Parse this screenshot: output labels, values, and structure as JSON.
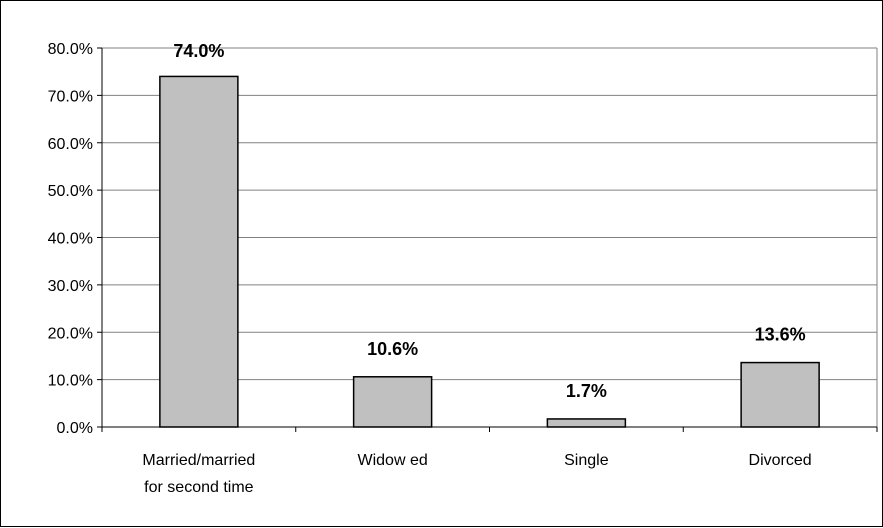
{
  "chart_data": {
    "type": "bar",
    "categories": [
      [
        "Married/married",
        "for second time"
      ],
      [
        "Widow ed"
      ],
      [
        "Single"
      ],
      [
        "Divorced"
      ]
    ],
    "values": [
      74.0,
      10.6,
      1.7,
      13.6
    ],
    "data_labels": [
      "74.0%",
      "10.6%",
      "1.7%",
      "13.6%"
    ],
    "yticks": [
      0,
      10,
      20,
      30,
      40,
      50,
      60,
      70,
      80
    ],
    "ytick_labels": [
      "0.0%",
      "10.0%",
      "20.0%",
      "30.0%",
      "40.0%",
      "50.0%",
      "60.0%",
      "70.0%",
      "80.0%"
    ],
    "ylim": [
      0,
      80
    ],
    "title": "",
    "xlabel": "",
    "ylabel": "",
    "grid": true,
    "legend": "none",
    "bar_color": "#c0c0c0",
    "bar_edge_color": "#000000",
    "grid_color": "#808080"
  }
}
